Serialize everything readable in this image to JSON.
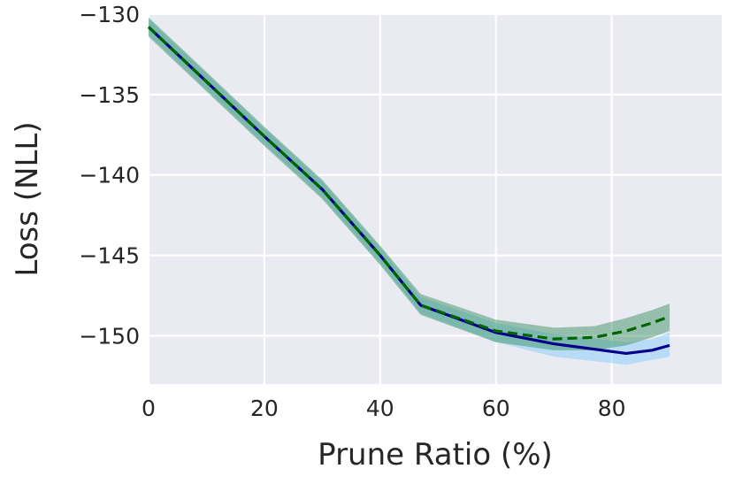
{
  "chart_data": {
    "type": "line",
    "title": "",
    "xlabel": "Prune Ratio (%)",
    "ylabel": "Loss (NLL)",
    "xlim": [
      0,
      99
    ],
    "ylim": [
      -153,
      -130
    ],
    "x_ticks": [
      0,
      20,
      40,
      60,
      80
    ],
    "y_ticks": [
      -130,
      -135,
      -140,
      -145,
      -150
    ],
    "x_tick_labels": [
      "0",
      "20",
      "40",
      "60",
      "80"
    ],
    "y_tick_labels": [
      "−130",
      "−135",
      "−140",
      "−145",
      "−150"
    ],
    "grid": true,
    "legend": "none",
    "colors": {
      "background": "#eaeaf2",
      "grid": "#ffffff",
      "series_solid": "#00008b",
      "series_solid_band": "#87cefa",
      "series_dashed": "#006400",
      "series_dashed_band": "#2e8b57"
    },
    "series": [
      {
        "style": "solid",
        "color": "#00008b",
        "band_color": "#87cefa",
        "x": [
          0,
          10,
          20,
          30,
          40,
          47,
          60,
          70,
          82.5,
          87,
          90
        ],
        "y": [
          -130.8,
          -134.2,
          -137.6,
          -140.9,
          -145.0,
          -148.1,
          -149.8,
          -150.5,
          -151.1,
          -150.9,
          -150.6
        ],
        "lower": [
          -131.3,
          -134.7,
          -138.1,
          -141.4,
          -145.5,
          -148.6,
          -150.4,
          -151.3,
          -151.8,
          -151.5,
          -151.3
        ],
        "upper": [
          -130.3,
          -133.7,
          -137.1,
          -140.4,
          -144.5,
          -147.6,
          -149.2,
          -149.9,
          -150.4,
          -150.2,
          -149.8
        ]
      },
      {
        "style": "dashed",
        "color": "#006400",
        "band_color": "#2e8b57",
        "x": [
          0,
          10,
          20,
          30,
          40,
          47,
          60,
          70,
          77,
          82.5,
          87,
          90
        ],
        "y": [
          -130.8,
          -134.2,
          -137.6,
          -140.9,
          -145.0,
          -148.1,
          -149.7,
          -150.2,
          -150.1,
          -149.7,
          -149.2,
          -148.8
        ],
        "lower": [
          -131.4,
          -134.8,
          -138.2,
          -141.5,
          -145.6,
          -148.7,
          -150.4,
          -150.9,
          -150.9,
          -150.6,
          -150.1,
          -149.7
        ],
        "upper": [
          -130.2,
          -133.6,
          -137.0,
          -140.3,
          -144.4,
          -147.4,
          -149.0,
          -149.5,
          -149.4,
          -148.9,
          -148.4,
          -148.0
        ]
      }
    ]
  }
}
